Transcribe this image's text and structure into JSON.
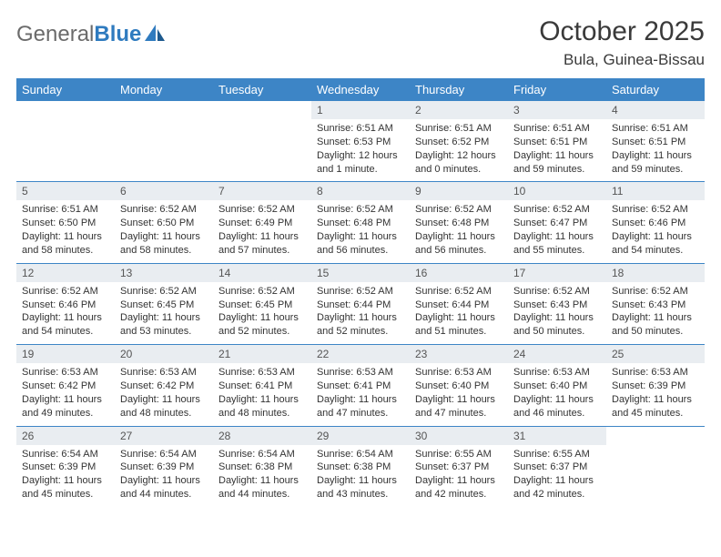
{
  "logo": {
    "word1": "General",
    "word2": "Blue"
  },
  "title": "October 2025",
  "location": "Bula, Guinea-Bissau",
  "colors": {
    "header_bg": "#3d85c6",
    "header_text": "#ffffff",
    "daynum_bg": "#e9edf1",
    "border": "#3d85c6",
    "logo_gray": "#6b6b6b",
    "logo_blue": "#2f7bbf"
  },
  "weekdays": [
    "Sunday",
    "Monday",
    "Tuesday",
    "Wednesday",
    "Thursday",
    "Friday",
    "Saturday"
  ],
  "weeks": [
    [
      {
        "n": "",
        "sr": "",
        "ss": "",
        "dl": ""
      },
      {
        "n": "",
        "sr": "",
        "ss": "",
        "dl": ""
      },
      {
        "n": "",
        "sr": "",
        "ss": "",
        "dl": ""
      },
      {
        "n": "1",
        "sr": "Sunrise: 6:51 AM",
        "ss": "Sunset: 6:53 PM",
        "dl": "Daylight: 12 hours and 1 minute."
      },
      {
        "n": "2",
        "sr": "Sunrise: 6:51 AM",
        "ss": "Sunset: 6:52 PM",
        "dl": "Daylight: 12 hours and 0 minutes."
      },
      {
        "n": "3",
        "sr": "Sunrise: 6:51 AM",
        "ss": "Sunset: 6:51 PM",
        "dl": "Daylight: 11 hours and 59 minutes."
      },
      {
        "n": "4",
        "sr": "Sunrise: 6:51 AM",
        "ss": "Sunset: 6:51 PM",
        "dl": "Daylight: 11 hours and 59 minutes."
      }
    ],
    [
      {
        "n": "5",
        "sr": "Sunrise: 6:51 AM",
        "ss": "Sunset: 6:50 PM",
        "dl": "Daylight: 11 hours and 58 minutes."
      },
      {
        "n": "6",
        "sr": "Sunrise: 6:52 AM",
        "ss": "Sunset: 6:50 PM",
        "dl": "Daylight: 11 hours and 58 minutes."
      },
      {
        "n": "7",
        "sr": "Sunrise: 6:52 AM",
        "ss": "Sunset: 6:49 PM",
        "dl": "Daylight: 11 hours and 57 minutes."
      },
      {
        "n": "8",
        "sr": "Sunrise: 6:52 AM",
        "ss": "Sunset: 6:48 PM",
        "dl": "Daylight: 11 hours and 56 minutes."
      },
      {
        "n": "9",
        "sr": "Sunrise: 6:52 AM",
        "ss": "Sunset: 6:48 PM",
        "dl": "Daylight: 11 hours and 56 minutes."
      },
      {
        "n": "10",
        "sr": "Sunrise: 6:52 AM",
        "ss": "Sunset: 6:47 PM",
        "dl": "Daylight: 11 hours and 55 minutes."
      },
      {
        "n": "11",
        "sr": "Sunrise: 6:52 AM",
        "ss": "Sunset: 6:46 PM",
        "dl": "Daylight: 11 hours and 54 minutes."
      }
    ],
    [
      {
        "n": "12",
        "sr": "Sunrise: 6:52 AM",
        "ss": "Sunset: 6:46 PM",
        "dl": "Daylight: 11 hours and 54 minutes."
      },
      {
        "n": "13",
        "sr": "Sunrise: 6:52 AM",
        "ss": "Sunset: 6:45 PM",
        "dl": "Daylight: 11 hours and 53 minutes."
      },
      {
        "n": "14",
        "sr": "Sunrise: 6:52 AM",
        "ss": "Sunset: 6:45 PM",
        "dl": "Daylight: 11 hours and 52 minutes."
      },
      {
        "n": "15",
        "sr": "Sunrise: 6:52 AM",
        "ss": "Sunset: 6:44 PM",
        "dl": "Daylight: 11 hours and 52 minutes."
      },
      {
        "n": "16",
        "sr": "Sunrise: 6:52 AM",
        "ss": "Sunset: 6:44 PM",
        "dl": "Daylight: 11 hours and 51 minutes."
      },
      {
        "n": "17",
        "sr": "Sunrise: 6:52 AM",
        "ss": "Sunset: 6:43 PM",
        "dl": "Daylight: 11 hours and 50 minutes."
      },
      {
        "n": "18",
        "sr": "Sunrise: 6:52 AM",
        "ss": "Sunset: 6:43 PM",
        "dl": "Daylight: 11 hours and 50 minutes."
      }
    ],
    [
      {
        "n": "19",
        "sr": "Sunrise: 6:53 AM",
        "ss": "Sunset: 6:42 PM",
        "dl": "Daylight: 11 hours and 49 minutes."
      },
      {
        "n": "20",
        "sr": "Sunrise: 6:53 AM",
        "ss": "Sunset: 6:42 PM",
        "dl": "Daylight: 11 hours and 48 minutes."
      },
      {
        "n": "21",
        "sr": "Sunrise: 6:53 AM",
        "ss": "Sunset: 6:41 PM",
        "dl": "Daylight: 11 hours and 48 minutes."
      },
      {
        "n": "22",
        "sr": "Sunrise: 6:53 AM",
        "ss": "Sunset: 6:41 PM",
        "dl": "Daylight: 11 hours and 47 minutes."
      },
      {
        "n": "23",
        "sr": "Sunrise: 6:53 AM",
        "ss": "Sunset: 6:40 PM",
        "dl": "Daylight: 11 hours and 47 minutes."
      },
      {
        "n": "24",
        "sr": "Sunrise: 6:53 AM",
        "ss": "Sunset: 6:40 PM",
        "dl": "Daylight: 11 hours and 46 minutes."
      },
      {
        "n": "25",
        "sr": "Sunrise: 6:53 AM",
        "ss": "Sunset: 6:39 PM",
        "dl": "Daylight: 11 hours and 45 minutes."
      }
    ],
    [
      {
        "n": "26",
        "sr": "Sunrise: 6:54 AM",
        "ss": "Sunset: 6:39 PM",
        "dl": "Daylight: 11 hours and 45 minutes."
      },
      {
        "n": "27",
        "sr": "Sunrise: 6:54 AM",
        "ss": "Sunset: 6:39 PM",
        "dl": "Daylight: 11 hours and 44 minutes."
      },
      {
        "n": "28",
        "sr": "Sunrise: 6:54 AM",
        "ss": "Sunset: 6:38 PM",
        "dl": "Daylight: 11 hours and 44 minutes."
      },
      {
        "n": "29",
        "sr": "Sunrise: 6:54 AM",
        "ss": "Sunset: 6:38 PM",
        "dl": "Daylight: 11 hours and 43 minutes."
      },
      {
        "n": "30",
        "sr": "Sunrise: 6:55 AM",
        "ss": "Sunset: 6:37 PM",
        "dl": "Daylight: 11 hours and 42 minutes."
      },
      {
        "n": "31",
        "sr": "Sunrise: 6:55 AM",
        "ss": "Sunset: 6:37 PM",
        "dl": "Daylight: 11 hours and 42 minutes."
      },
      {
        "n": "",
        "sr": "",
        "ss": "",
        "dl": ""
      }
    ]
  ]
}
